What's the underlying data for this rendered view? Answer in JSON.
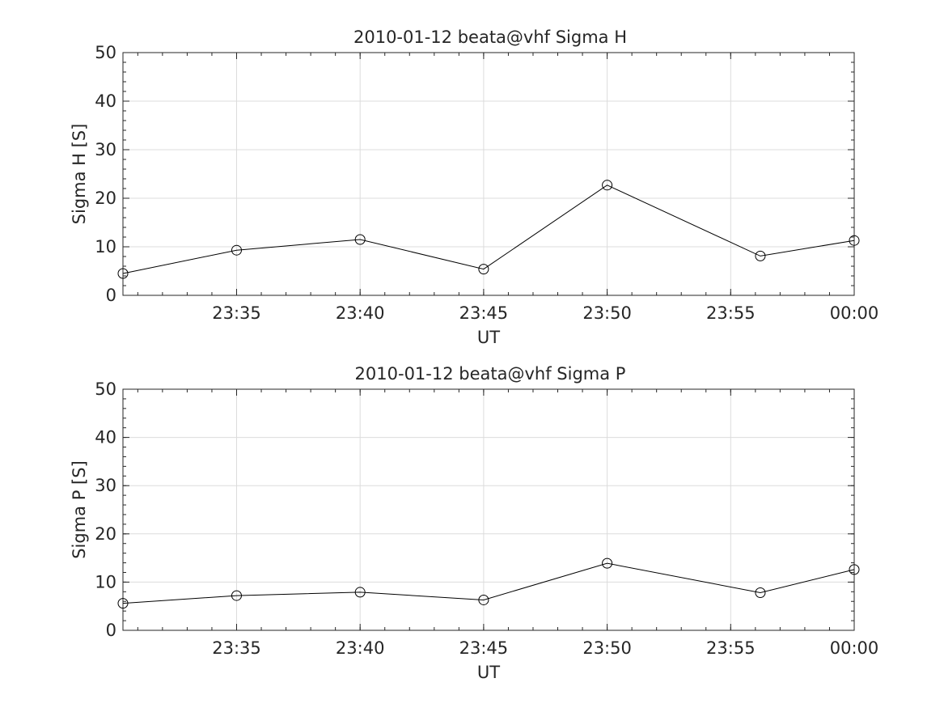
{
  "chart_data": [
    {
      "type": "line",
      "title": "2010-01-12  beata@vhf Sigma H",
      "xlabel": "UT",
      "ylabel": "Sigma H [S]",
      "x_ticks": [
        "23:35",
        "23:40",
        "23:45",
        "23:50",
        "23:55",
        "00:00"
      ],
      "x_tick_minutes": [
        1415,
        1420,
        1425,
        1430,
        1435,
        1440
      ],
      "xlim_minutes": [
        1410.4,
        1440
      ],
      "ylim": [
        0,
        50
      ],
      "y_ticks": [
        0,
        10,
        20,
        30,
        40,
        50
      ],
      "grid": true,
      "series": [
        {
          "marker": "circle",
          "x_minutes": [
            1410.4,
            1415.0,
            1420.0,
            1425.0,
            1430.0,
            1436.2,
            1440.0
          ],
          "values": [
            4.5,
            9.3,
            11.5,
            5.4,
            22.7,
            8.1,
            11.3
          ]
        }
      ]
    },
    {
      "type": "line",
      "title": "2010-01-12  beata@vhf Sigma P",
      "xlabel": "UT",
      "ylabel": "Sigma P [S]",
      "x_ticks": [
        "23:35",
        "23:40",
        "23:45",
        "23:50",
        "23:55",
        "00:00"
      ],
      "x_tick_minutes": [
        1415,
        1420,
        1425,
        1430,
        1435,
        1440
      ],
      "xlim_minutes": [
        1410.4,
        1440
      ],
      "ylim": [
        0,
        50
      ],
      "y_ticks": [
        0,
        10,
        20,
        30,
        40,
        50
      ],
      "grid": true,
      "series": [
        {
          "marker": "circle",
          "x_minutes": [
            1410.4,
            1415.0,
            1420.0,
            1425.0,
            1430.0,
            1436.2,
            1440.0
          ],
          "values": [
            5.6,
            7.2,
            7.9,
            6.3,
            13.9,
            7.8,
            12.6
          ]
        }
      ]
    }
  ]
}
